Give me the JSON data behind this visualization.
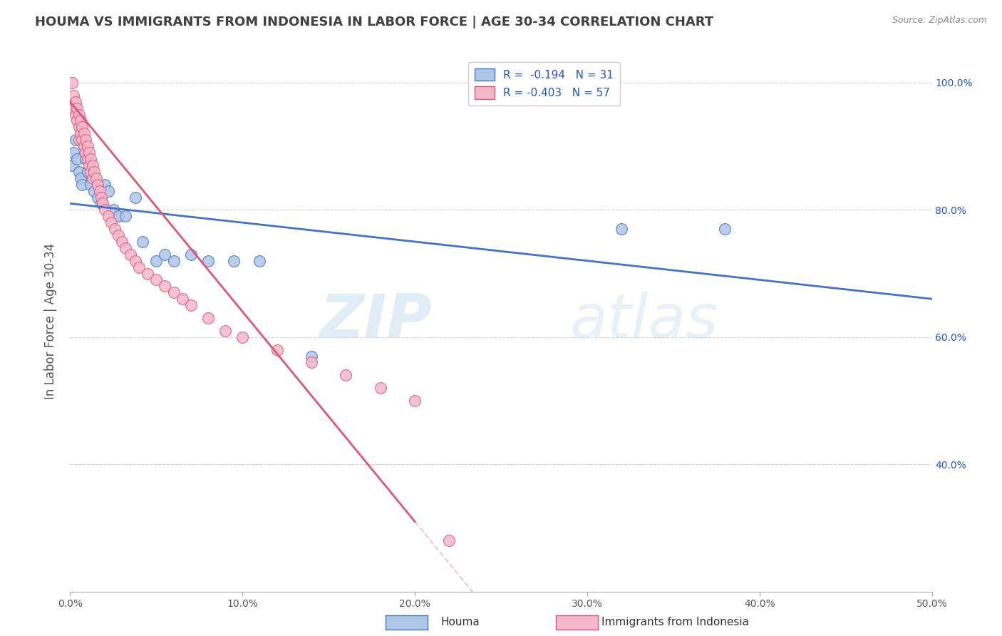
{
  "title": "HOUMA VS IMMIGRANTS FROM INDONESIA IN LABOR FORCE | AGE 30-34 CORRELATION CHART",
  "source": "Source: ZipAtlas.com",
  "ylabel": "In Labor Force | Age 30-34",
  "xmin": 0.0,
  "xmax": 0.5,
  "ymin": 0.2,
  "ymax": 1.05,
  "houma_R": -0.194,
  "houma_N": 31,
  "indonesia_R": -0.403,
  "indonesia_N": 57,
  "houma_color": "#aec6e8",
  "houma_line_color": "#4472c4",
  "indonesia_color": "#f4b8cc",
  "indonesia_line_color": "#e05577",
  "watermark_zip": "ZIP",
  "watermark_atlas": "atlas",
  "legend_R_color": "#2255cc",
  "bg_color": "#ffffff",
  "grid_color": "#cccccc",
  "title_color": "#404040",
  "xtick_labels": [
    "0.0%",
    "10.0%",
    "20.0%",
    "30.0%",
    "40.0%",
    "50.0%"
  ],
  "xtick_values": [
    0.0,
    0.1,
    0.2,
    0.3,
    0.4,
    0.5
  ],
  "ytick_labels": [
    "40.0%",
    "60.0%",
    "80.0%",
    "100.0%"
  ],
  "ytick_values": [
    0.4,
    0.6,
    0.8,
    1.0
  ],
  "houma_x": [
    0.001,
    0.002,
    0.003,
    0.004,
    0.005,
    0.006,
    0.007,
    0.008,
    0.009,
    0.01,
    0.012,
    0.014,
    0.016,
    0.018,
    0.02,
    0.022,
    0.025,
    0.028,
    0.032,
    0.038,
    0.042,
    0.05,
    0.055,
    0.06,
    0.07,
    0.08,
    0.095,
    0.11,
    0.14,
    0.32,
    0.38
  ],
  "houma_y": [
    0.87,
    0.89,
    0.91,
    0.88,
    0.86,
    0.85,
    0.84,
    0.9,
    0.88,
    0.86,
    0.84,
    0.83,
    0.82,
    0.81,
    0.84,
    0.83,
    0.8,
    0.79,
    0.79,
    0.82,
    0.75,
    0.72,
    0.73,
    0.72,
    0.73,
    0.72,
    0.72,
    0.72,
    0.57,
    0.77,
    0.77
  ],
  "indonesia_x": [
    0.001,
    0.002,
    0.002,
    0.003,
    0.003,
    0.004,
    0.004,
    0.005,
    0.005,
    0.005,
    0.006,
    0.006,
    0.007,
    0.007,
    0.008,
    0.008,
    0.009,
    0.009,
    0.01,
    0.01,
    0.011,
    0.011,
    0.012,
    0.012,
    0.013,
    0.013,
    0.014,
    0.015,
    0.016,
    0.017,
    0.018,
    0.019,
    0.02,
    0.022,
    0.024,
    0.026,
    0.028,
    0.03,
    0.032,
    0.035,
    0.038,
    0.04,
    0.045,
    0.05,
    0.055,
    0.06,
    0.065,
    0.07,
    0.08,
    0.09,
    0.1,
    0.12,
    0.14,
    0.16,
    0.18,
    0.2,
    0.22
  ],
  "indonesia_y": [
    1.0,
    0.98,
    0.96,
    0.97,
    0.95,
    0.96,
    0.94,
    0.95,
    0.93,
    0.91,
    0.94,
    0.92,
    0.93,
    0.91,
    0.92,
    0.9,
    0.91,
    0.89,
    0.9,
    0.88,
    0.89,
    0.87,
    0.88,
    0.86,
    0.87,
    0.85,
    0.86,
    0.85,
    0.84,
    0.83,
    0.82,
    0.81,
    0.8,
    0.79,
    0.78,
    0.77,
    0.76,
    0.75,
    0.74,
    0.73,
    0.72,
    0.71,
    0.7,
    0.69,
    0.68,
    0.67,
    0.66,
    0.65,
    0.63,
    0.61,
    0.6,
    0.58,
    0.56,
    0.54,
    0.52,
    0.5,
    0.28
  ],
  "houma_trendline_intercept": 0.81,
  "houma_trendline_slope": -0.3,
  "indonesia_trendline_intercept": 0.97,
  "indonesia_trendline_slope": -3.3
}
